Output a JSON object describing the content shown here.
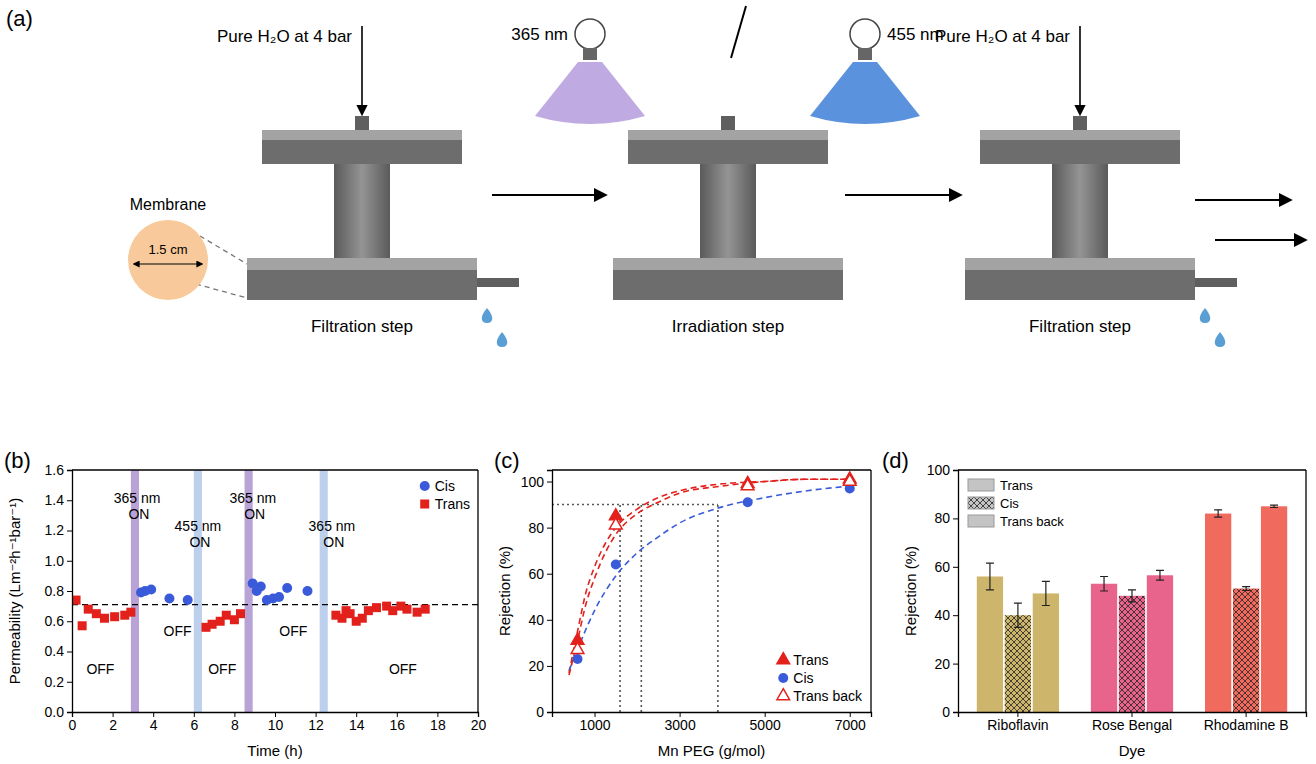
{
  "diagram": {
    "panel": "(a)",
    "steps": [
      {
        "label": "Filtration step",
        "inlet": "Pure H₂O at 4 bar"
      },
      {
        "label": "Irradiation step",
        "lights": [
          "365 nm",
          "455 nm"
        ]
      },
      {
        "label": "Filtration step",
        "inlet": "Pure H₂O at 4 bar"
      }
    ],
    "membrane": {
      "label": "Membrane",
      "size": "1.5 cm"
    }
  },
  "chart_data": [
    {
      "type": "scatter",
      "panel": "(b)",
      "x_label": "Time (h)",
      "y_label": "Permeability (Lm⁻²h⁻¹bar⁻¹)",
      "xlim": [
        0,
        20
      ],
      "xticks": [
        0,
        2,
        4,
        6,
        8,
        10,
        12,
        14,
        16,
        18,
        20
      ],
      "ylim": [
        0,
        1.6
      ],
      "yticks": [
        {
          "value": 0,
          "label": "0.0"
        },
        0.2,
        0.4,
        0.6,
        0.8,
        {
          "value": 1,
          "label": "1.0"
        },
        1.2,
        1.4,
        1.6
      ],
      "legend": "top-right",
      "series": [
        {
          "name": "Cis",
          "color": "#3a5bd9",
          "marker": "circle",
          "x": [
            3.4,
            3.6,
            3.9,
            4.8,
            5.7,
            8.9,
            9.1,
            9.3,
            9.6,
            9.9,
            10.2,
            10.6,
            11.6
          ],
          "values": [
            0.79,
            0.8,
            0.81,
            0.75,
            0.74,
            0.85,
            0.8,
            0.83,
            0.74,
            0.75,
            0.76,
            0.82,
            0.8
          ]
        },
        {
          "name": "Trans",
          "color": "#e3211c",
          "marker": "square",
          "x": [
            0.2,
            0.5,
            0.8,
            1.2,
            1.6,
            2.1,
            2.6,
            2.9,
            6.6,
            6.9,
            7.3,
            7.6,
            8.0,
            8.3,
            13.0,
            13.3,
            13.5,
            13.7,
            14.0,
            14.3,
            14.6,
            15.0,
            15.5,
            15.8,
            16.2,
            16.5,
            17.0,
            17.4
          ],
          "values": [
            0.74,
            0.57,
            0.68,
            0.65,
            0.62,
            0.63,
            0.64,
            0.66,
            0.56,
            0.58,
            0.6,
            0.64,
            0.61,
            0.65,
            0.64,
            0.62,
            0.67,
            0.65,
            0.6,
            0.62,
            0.67,
            0.69,
            0.7,
            0.67,
            0.7,
            0.68,
            0.66,
            0.68
          ]
        }
      ],
      "bands": [
        {
          "x0": 2.9,
          "x1": 3.3,
          "color": "#b8a2d6"
        },
        {
          "x0": 6.0,
          "x1": 6.4,
          "color": "#bcd0ee"
        },
        {
          "x0": 8.5,
          "x1": 8.9,
          "color": "#b8a2d6"
        },
        {
          "x0": 12.2,
          "x1": 12.6,
          "color": "#bcd0ee"
        }
      ],
      "reference_line": {
        "value": 0.71,
        "line_style": "dashed"
      },
      "annotations": [
        {
          "text": "365 nm ON",
          "x": 3.3,
          "y": 1.38
        },
        {
          "text": "455 nm ON",
          "x": 6.3,
          "y": 1.2
        },
        {
          "text": "365 nm ON",
          "x": 9.0,
          "y": 1.38
        },
        {
          "text": "365 nm ON",
          "x": 12.9,
          "y": 1.2
        },
        {
          "text": "OFF",
          "x": 1.4,
          "y": 0.25
        },
        {
          "text": "OFF",
          "x": 5.2,
          "y": 0.5
        },
        {
          "text": "OFF",
          "x": 7.4,
          "y": 0.25
        },
        {
          "text": "OFF",
          "x": 10.9,
          "y": 0.5
        },
        {
          "text": "OFF",
          "x": 16.3,
          "y": 0.25
        }
      ]
    },
    {
      "type": "scatter",
      "panel": "(c)",
      "x_label": "Mn PEG (g/mol)",
      "y_label": "Rejection (%)",
      "xlim": [
        0,
        7500
      ],
      "xticks": [
        1000,
        3000,
        5000,
        7000
      ],
      "ylim": [
        0,
        105
      ],
      "yticks": [
        0,
        20,
        40,
        60,
        80,
        100
      ],
      "legend": "bottom-right",
      "guides": {
        "y": 90,
        "x": [
          1600,
          2100,
          3900
        ]
      },
      "series": [
        {
          "name": "Trans",
          "color": "#e3211c",
          "marker": "triangle",
          "x": [
            600,
            1500,
            4600,
            7000
          ],
          "values": [
            31,
            85,
            99,
            101
          ]
        },
        {
          "name": "Cis",
          "color": "#3a5bd9",
          "marker": "circle",
          "x": [
            600,
            1500,
            4600,
            7000
          ],
          "values": [
            23,
            64,
            91,
            97
          ]
        },
        {
          "name": "Trans back",
          "color": "#e3211c",
          "marker": "triangle-open",
          "x": [
            600,
            1500,
            4600,
            7000
          ],
          "values": [
            27,
            81,
            98,
            100
          ]
        },
        {
          "type": "line",
          "color": "#e3211c",
          "line_style": "dashed",
          "x": [
            400,
            600,
            800,
            1000,
            1250,
            1500,
            2000,
            2500,
            3000,
            4000,
            5000,
            6000,
            7000
          ],
          "values": [
            17,
            35,
            52,
            63,
            73,
            80,
            88,
            93,
            96,
            99,
            100,
            101,
            101
          ]
        },
        {
          "type": "line",
          "color": "#3a5bd9",
          "line_style": "dashed",
          "x": [
            400,
            600,
            800,
            1000,
            1500,
            2000,
            2500,
            3000,
            4000,
            5000,
            6000,
            7000
          ],
          "values": [
            18,
            27,
            36,
            44,
            59,
            69,
            76,
            82,
            89,
            93,
            96,
            98
          ]
        },
        {
          "type": "line",
          "color": "#e3211c",
          "line_style": "dashed",
          "x": [
            400,
            600,
            800,
            1000,
            1250,
            1500,
            2000,
            2500,
            3000,
            4000,
            5000,
            6000,
            7000
          ],
          "values": [
            16,
            31,
            47,
            58,
            69,
            77,
            86,
            91,
            95,
            98,
            100,
            101,
            101
          ]
        }
      ]
    },
    {
      "type": "bar",
      "panel": "(d)",
      "x_label": "Dye",
      "y_label": "Rejection (%)",
      "categories": [
        "Riboflavin",
        "Rose Bengal",
        "Rhodamine B"
      ],
      "ylim": [
        0,
        100
      ],
      "yticks": [
        0,
        20,
        40,
        60,
        80,
        100
      ],
      "legend": "top-left",
      "series": [
        {
          "name": "Trans",
          "color": "#c4c4c4",
          "colors": [
            "#cdb56c",
            "#e9648c",
            "#f06a5e"
          ],
          "values": [
            56,
            53,
            82
          ],
          "errors": [
            5.5,
            3,
            1.5
          ]
        },
        {
          "name": "Cis",
          "color": "#c4c4c4",
          "marker": "crosshatch",
          "colors": [
            "#cdb56c",
            "#e9648c",
            "#f06a5e"
          ],
          "values": [
            40,
            48,
            51
          ],
          "errors": [
            5,
            2.5,
            0.8
          ]
        },
        {
          "name": "Trans back",
          "color": "#c4c4c4",
          "colors": [
            "#cdb56c",
            "#e9648c",
            "#f06a5e"
          ],
          "values": [
            49,
            56.5,
            85
          ],
          "errors": [
            5,
            2,
            0.5
          ]
        }
      ]
    }
  ]
}
